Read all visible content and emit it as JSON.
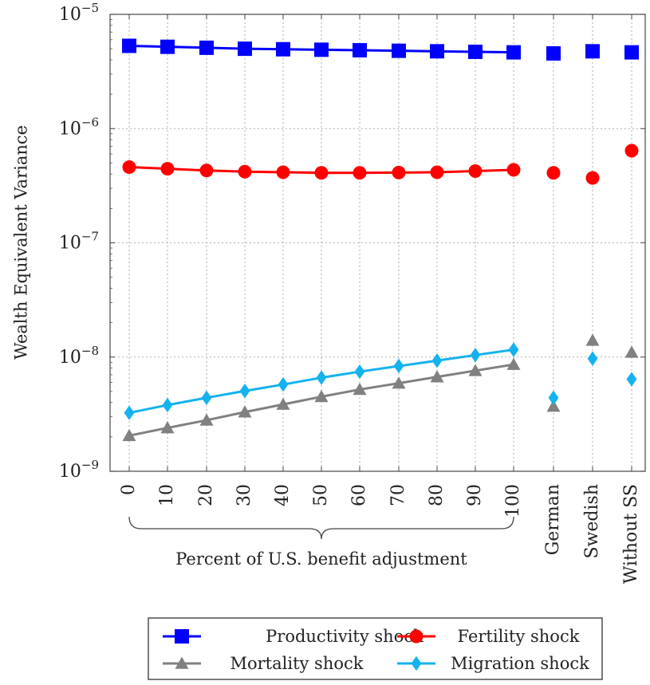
{
  "chart_data": {
    "type": "line",
    "ylabel": "Wealth Equivalent Variance",
    "yscale": "log",
    "ylim": [
      1e-09,
      1e-05
    ],
    "yticks": [
      {
        "base": "10",
        "exp": "−9"
      },
      {
        "base": "10",
        "exp": "−8"
      },
      {
        "base": "10",
        "exp": "−7"
      },
      {
        "base": "10",
        "exp": "−6"
      },
      {
        "base": "10",
        "exp": "−5"
      }
    ],
    "categories": [
      "0",
      "10",
      "20",
      "30",
      "40",
      "50",
      "60",
      "70",
      "80",
      "90",
      "100",
      "German",
      "Swedish",
      "Without SS"
    ],
    "group_label": "Percent of U.S. benefit adjustment",
    "grid": true,
    "legend_position": "bottom",
    "series": [
      {
        "name": "Productivity shock",
        "color": "#0000ff",
        "marker": "square",
        "values": [
          5.3e-06,
          5.2e-06,
          5.1e-06,
          5e-06,
          4.95e-06,
          4.9e-06,
          4.85e-06,
          4.8e-06,
          4.75e-06,
          4.7e-06,
          4.65e-06,
          4.55e-06,
          4.75e-06,
          4.65e-06
        ]
      },
      {
        "name": "Fertility shock",
        "color": "#ff0000",
        "marker": "circle",
        "values": [
          4.6e-07,
          4.45e-07,
          4.3e-07,
          4.2e-07,
          4.15e-07,
          4.1e-07,
          4.1e-07,
          4.12e-07,
          4.15e-07,
          4.25e-07,
          4.35e-07,
          4.1e-07,
          3.7e-07,
          6.4e-07
        ]
      },
      {
        "name": "Mortality shock",
        "color": "#808080",
        "marker": "triangle",
        "values": [
          2.05e-09,
          2.4e-09,
          2.8e-09,
          3.3e-09,
          3.85e-09,
          4.5e-09,
          5.2e-09,
          5.9e-09,
          6.7e-09,
          7.6e-09,
          8.6e-09,
          3.7e-09,
          1.4e-08,
          1.1e-08
        ]
      },
      {
        "name": "Migration shock",
        "color": "#14b2ee",
        "marker": "diamond",
        "values": [
          3.25e-09,
          3.8e-09,
          4.4e-09,
          5.05e-09,
          5.75e-09,
          6.6e-09,
          7.45e-09,
          8.35e-09,
          9.3e-09,
          1.04e-08,
          1.16e-08,
          4.4e-09,
          9.7e-09,
          6.4e-09
        ]
      }
    ]
  }
}
